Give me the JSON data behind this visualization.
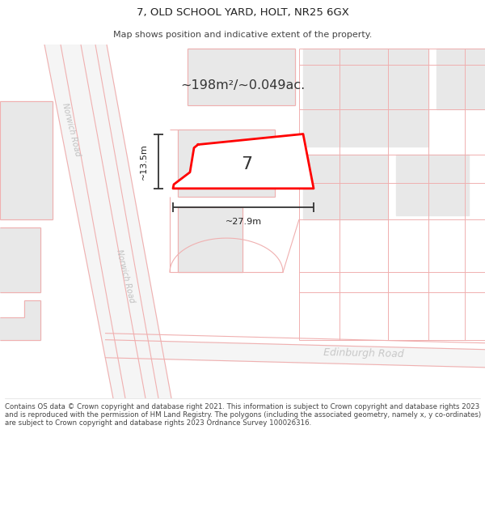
{
  "title": "7, OLD SCHOOL YARD, HOLT, NR25 6GX",
  "subtitle": "Map shows position and indicative extent of the property.",
  "footer": "Contains OS data © Crown copyright and database right 2021. This information is subject to Crown copyright and database rights 2023 and is reproduced with the permission of HM Land Registry. The polygons (including the associated geometry, namely x, y co-ordinates) are subject to Crown copyright and database rights 2023 Ordnance Survey 100026316.",
  "area_text": "~198m²/~0.049ac.",
  "label_number": "7",
  "dim_width": "~27.9m",
  "dim_height": "~13.5m",
  "bg_color": "#ffffff",
  "map_bg": "#ffffff",
  "road_fill": "#f0f0f0",
  "building_fill": "#e8e8e8",
  "road_line_color": "#f0b0b0",
  "property_color": "#ff0000",
  "title_fontsize": 9.5,
  "subtitle_fontsize": 8.0,
  "footer_fontsize": 6.2,
  "road_label_color": "#c0c0c0",
  "edinburgh_label_color": "#c8c8c8"
}
